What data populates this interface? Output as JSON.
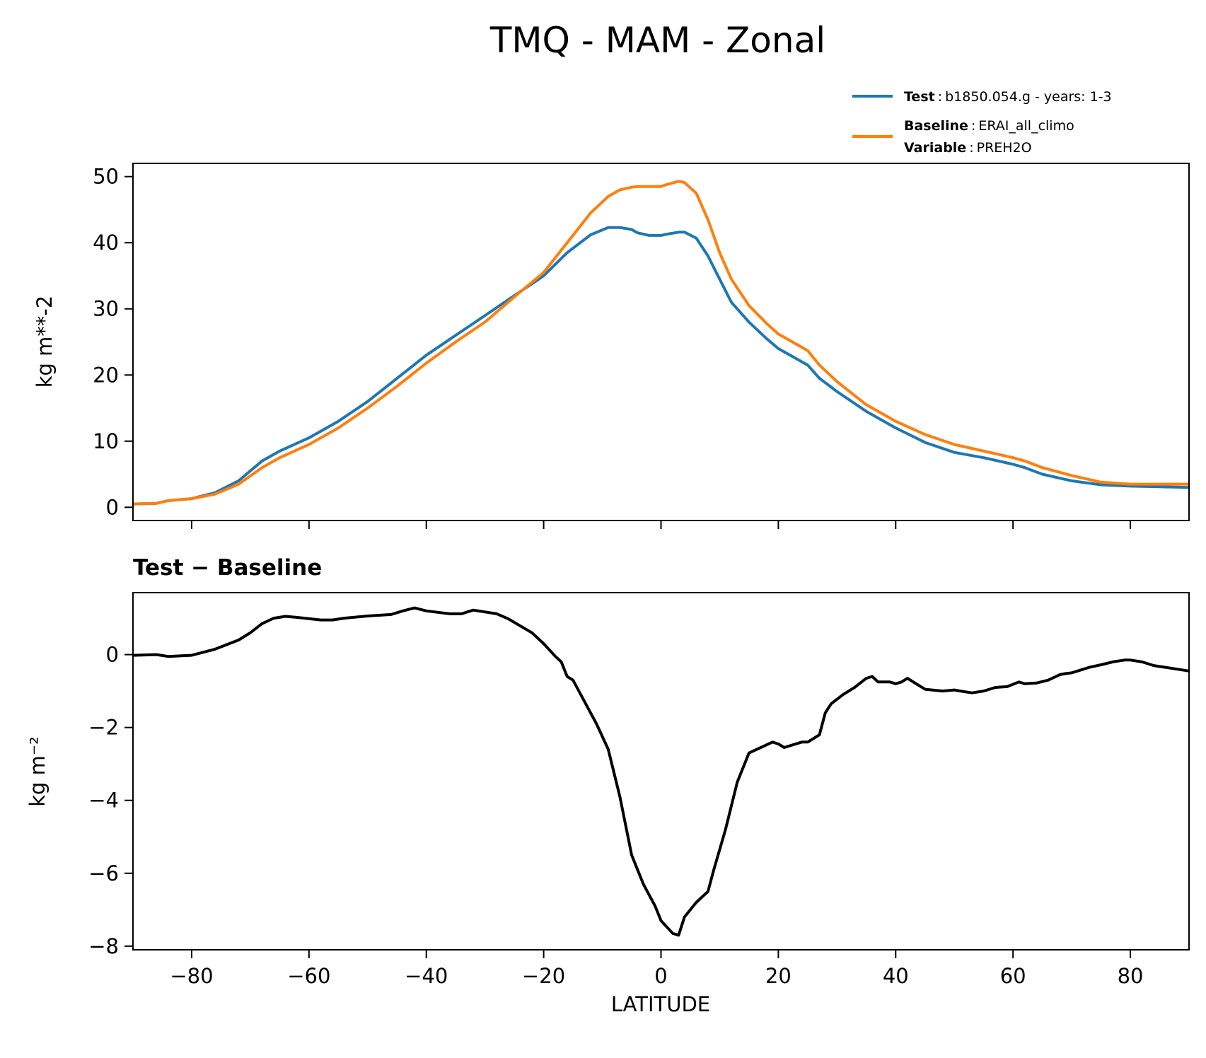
{
  "chart_data": [
    {
      "type": "line",
      "title": "TMQ - MAM - Zonal",
      "ylabel": "kg m**-2",
      "xlim": [
        -90,
        90
      ],
      "ylim": [
        -2,
        52
      ],
      "xticks": [
        -80,
        -60,
        -40,
        -20,
        0,
        20,
        40,
        60,
        80
      ],
      "yticks": [
        0,
        10,
        20,
        30,
        40,
        50
      ],
      "ytick_labels": [
        "0",
        "10",
        "20",
        "30",
        "40",
        "50"
      ],
      "legend": {
        "placement": "above-right",
        "entries": [
          {
            "lines": [
              {
                "bold": "Test",
                "text": "b1850.054.g - years: 1-3"
              }
            ]
          },
          {
            "lines": [
              {
                "bold": "Baseline",
                "text": "ERAI_all_climo"
              },
              {
                "bold": "Variable",
                "text": "PREH2O"
              }
            ]
          }
        ]
      },
      "x": [
        -90,
        -86,
        -84,
        -80,
        -76,
        -72,
        -68,
        -65,
        -60,
        -55,
        -50,
        -45,
        -40,
        -35,
        -30,
        -25,
        -20,
        -16,
        -12,
        -9,
        -7,
        -5,
        -4,
        -2,
        0,
        1,
        3,
        4,
        6,
        8,
        10,
        12,
        15,
        18,
        20,
        25,
        27,
        30,
        35,
        40,
        45,
        50,
        55,
        60,
        62,
        65,
        70,
        75,
        80,
        85,
        90
      ],
      "series": [
        {
          "name": "Test",
          "color": "#1f77b4",
          "values": [
            0.5,
            0.6,
            1.0,
            1.3,
            2.2,
            4.0,
            7.0,
            8.5,
            10.5,
            13.0,
            16.0,
            19.5,
            23.0,
            26.0,
            29.0,
            32.0,
            35.0,
            38.5,
            41.2,
            42.3,
            42.3,
            42.0,
            41.5,
            41.1,
            41.1,
            41.3,
            41.6,
            41.6,
            40.7,
            38.0,
            34.5,
            31.0,
            28.0,
            25.5,
            24.0,
            21.5,
            19.5,
            17.5,
            14.5,
            12.0,
            9.8,
            8.3,
            7.5,
            6.5,
            6.0,
            5.0,
            4.0,
            3.4,
            3.2,
            3.1,
            3.0
          ]
        },
        {
          "name": "Baseline",
          "color": "#ff7f0e",
          "values": [
            0.5,
            0.6,
            1.0,
            1.3,
            2.0,
            3.5,
            6.0,
            7.5,
            9.5,
            12.0,
            15.0,
            18.3,
            21.8,
            25.0,
            28.0,
            31.8,
            35.5,
            40.0,
            44.5,
            47.0,
            48.0,
            48.4,
            48.5,
            48.5,
            48.5,
            48.8,
            49.3,
            49.1,
            47.5,
            43.5,
            38.5,
            34.5,
            30.5,
            27.8,
            26.2,
            23.7,
            21.5,
            19.0,
            15.5,
            13.0,
            11.0,
            9.5,
            8.5,
            7.5,
            7.0,
            6.0,
            4.8,
            3.8,
            3.5,
            3.5,
            3.5
          ]
        }
      ]
    },
    {
      "type": "line",
      "title": "Test − Baseline",
      "xlabel": "LATITUDE",
      "ylabel": "kg m⁻²",
      "xlim": [
        -90,
        90
      ],
      "ylim": [
        -8.1,
        1.7
      ],
      "xticks": [
        -80,
        -60,
        -40,
        -20,
        0,
        20,
        40,
        60,
        80
      ],
      "xtick_labels": [
        "−80",
        "−60",
        "−40",
        "−20",
        "0",
        "20",
        "40",
        "60",
        "80"
      ],
      "yticks": [
        0,
        -2,
        -4,
        -6,
        -8
      ],
      "ytick_labels": [
        "0",
        "−2",
        "−4",
        "−6",
        "−8"
      ],
      "series": [
        {
          "name": "",
          "color": "#000000",
          "x": [
            -90,
            -86,
            -84,
            -80,
            -76,
            -72,
            -70,
            -68,
            -66,
            -64,
            -62,
            -58,
            -56,
            -54,
            -50,
            -46,
            -44,
            -42,
            -40,
            -36,
            -34,
            -32,
            -28,
            -26,
            -22,
            -20,
            -18,
            -17,
            -16,
            -15,
            -13,
            -11,
            -9,
            -7,
            -5,
            -3,
            -1,
            0,
            2,
            3,
            4,
            6,
            8,
            9,
            11,
            13,
            15,
            17,
            19,
            20,
            21,
            22,
            24,
            25,
            27,
            28,
            29,
            31,
            33,
            35,
            36,
            37,
            39,
            40,
            41,
            42,
            43,
            45,
            48,
            50,
            51,
            53,
            55,
            57,
            59,
            61,
            62,
            64,
            66,
            68,
            69,
            70,
            71,
            73,
            75,
            77,
            79,
            80,
            82,
            84,
            86,
            88,
            90
          ],
          "values": [
            -0.02,
            0.0,
            -0.05,
            -0.02,
            0.15,
            0.4,
            0.6,
            0.85,
            1.0,
            1.05,
            1.02,
            0.95,
            0.95,
            1.0,
            1.06,
            1.1,
            1.2,
            1.28,
            1.2,
            1.12,
            1.12,
            1.22,
            1.12,
            0.98,
            0.6,
            0.3,
            -0.05,
            -0.2,
            -0.6,
            -0.7,
            -1.3,
            -1.9,
            -2.6,
            -3.9,
            -5.5,
            -6.3,
            -6.9,
            -7.3,
            -7.65,
            -7.7,
            -7.2,
            -6.8,
            -6.5,
            -5.9,
            -4.8,
            -3.5,
            -2.7,
            -2.55,
            -2.4,
            -2.45,
            -2.55,
            -2.5,
            -2.4,
            -2.4,
            -2.2,
            -1.6,
            -1.35,
            -1.1,
            -0.9,
            -0.65,
            -0.6,
            -0.75,
            -0.75,
            -0.8,
            -0.75,
            -0.65,
            -0.75,
            -0.95,
            -1.0,
            -0.97,
            -1.0,
            -1.05,
            -1.0,
            -0.9,
            -0.88,
            -0.75,
            -0.8,
            -0.78,
            -0.7,
            -0.55,
            -0.52,
            -0.5,
            -0.45,
            -0.35,
            -0.28,
            -0.2,
            -0.15,
            -0.15,
            -0.2,
            -0.3,
            -0.35,
            -0.4,
            -0.45
          ]
        }
      ]
    }
  ]
}
